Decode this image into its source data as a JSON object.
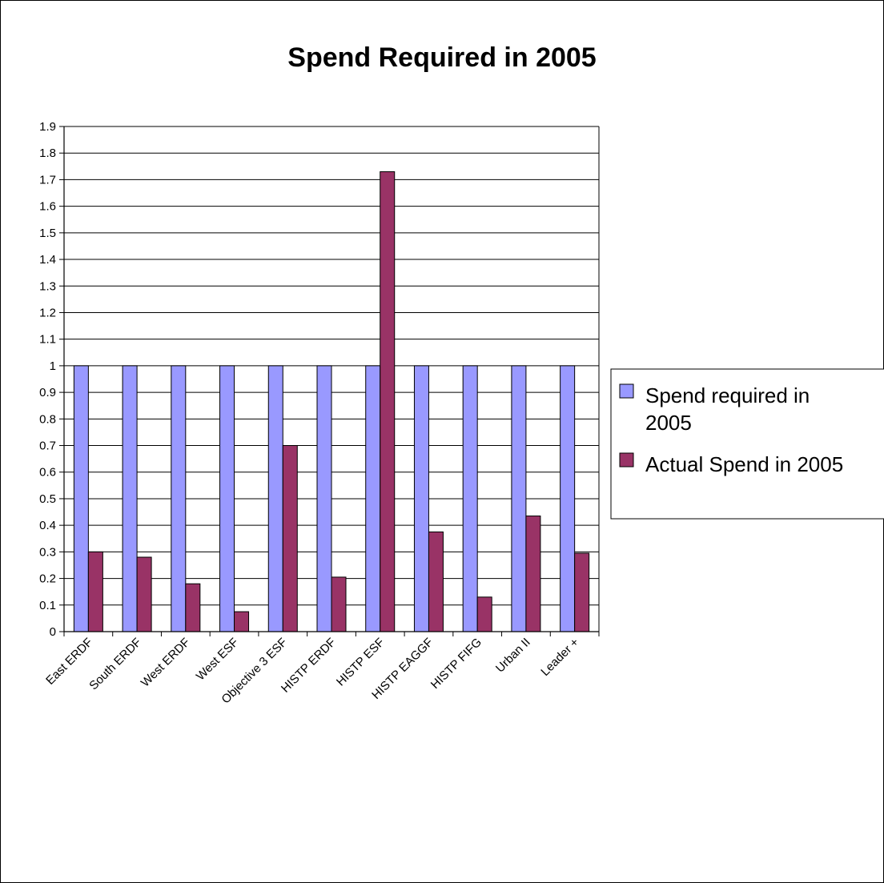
{
  "chart_data": {
    "type": "bar",
    "title": "Spend Required in 2005",
    "xlabel": "",
    "ylabel": "",
    "ylim": [
      0,
      1.9
    ],
    "y_ticks": [
      "0",
      "0.1",
      "0.2",
      "0.3",
      "0.4",
      "0.5",
      "0.6",
      "0.7",
      "0.8",
      "0.9",
      "1",
      "1.1",
      "1.2",
      "1.3",
      "1.4",
      "1.5",
      "1.6",
      "1.7",
      "1.8",
      "1.9"
    ],
    "categories": [
      "East ERDF",
      "South ERDF",
      "West ERDF",
      "West ESF",
      "Objective 3 ESF",
      "HISTP ERDF",
      "HISTP ESF",
      "HISTP EAGGF",
      "HISTP FIFG",
      "Urban II",
      "Leader +"
    ],
    "series": [
      {
        "name": "Spend required in 2005",
        "legend_lines": [
          "Spend required in",
          "2005"
        ],
        "color": "#9999ff",
        "values": [
          1,
          1,
          1,
          1,
          1,
          1,
          1,
          1,
          1,
          1,
          1
        ]
      },
      {
        "name": "Actual Spend in 2005",
        "legend_lines": [
          "Actual Spend in 2005"
        ],
        "color": "#993366",
        "values": [
          0.3,
          0.28,
          0.18,
          0.075,
          0.7,
          0.205,
          1.73,
          0.375,
          0.13,
          0.435,
          0.295
        ]
      }
    ],
    "grid": true,
    "legend_position": "right"
  }
}
